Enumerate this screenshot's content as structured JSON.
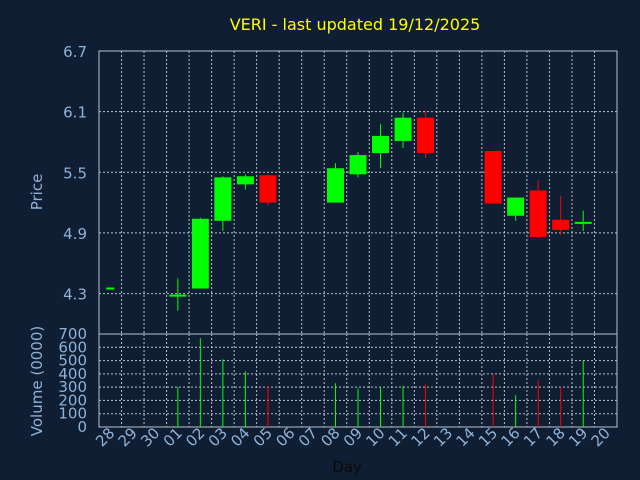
{
  "colors": {
    "background": "#0f1e32",
    "grid": "#b8c2cc",
    "title": "#ffff00",
    "axis_text": "#8fb2d8",
    "up": "#00ff00",
    "down": "#ff0000"
  },
  "chart_data": {
    "type": "candlestick",
    "title": "VERI - last updated 19/12/2025",
    "xlabel": "Day",
    "ylabel": "Price",
    "volume_label": "Volume (0000)",
    "grid": true,
    "categories": [
      "28",
      "29",
      "30",
      "01",
      "02",
      "03",
      "04",
      "05",
      "06",
      "07",
      "08",
      "09",
      "10",
      "11",
      "12",
      "13",
      "14",
      "15",
      "16",
      "17",
      "18",
      "19",
      "20"
    ],
    "price_ylim": [
      3.9,
      6.7
    ],
    "price_ticks": [
      "4.3",
      "4.9",
      "5.5",
      "6.1",
      "6.7"
    ],
    "volume_ylim": [
      0,
      700
    ],
    "volume_ticks": [
      "0",
      "100",
      "200",
      "300",
      "400",
      "500",
      "600",
      "700"
    ],
    "candles": [
      {
        "day": "28",
        "open": 4.35,
        "high": 4.35,
        "low": 4.35,
        "close": 4.35,
        "volume": 0
      },
      {
        "day": "01",
        "open": 4.28,
        "high": 4.45,
        "low": 4.13,
        "close": 4.28,
        "volume": 300
      },
      {
        "day": "02",
        "open": 4.35,
        "high": 5.05,
        "low": 4.35,
        "close": 5.04,
        "volume": 670
      },
      {
        "day": "03",
        "open": 5.02,
        "high": 5.46,
        "low": 4.92,
        "close": 5.45,
        "volume": 510
      },
      {
        "day": "04",
        "open": 5.38,
        "high": 5.48,
        "low": 5.33,
        "close": 5.46,
        "volume": 420
      },
      {
        "day": "05",
        "open": 5.47,
        "high": 5.48,
        "low": 5.17,
        "close": 5.2,
        "volume": 310
      },
      {
        "day": "08",
        "open": 5.2,
        "high": 5.59,
        "low": 5.2,
        "close": 5.54,
        "volume": 330
      },
      {
        "day": "09",
        "open": 5.48,
        "high": 5.7,
        "low": 5.45,
        "close": 5.67,
        "volume": 290
      },
      {
        "day": "10",
        "open": 5.69,
        "high": 5.98,
        "low": 5.54,
        "close": 5.86,
        "volume": 300
      },
      {
        "day": "11",
        "open": 5.81,
        "high": 6.09,
        "low": 5.74,
        "close": 6.04,
        "volume": 310
      },
      {
        "day": "12",
        "open": 6.04,
        "high": 6.11,
        "low": 5.64,
        "close": 5.69,
        "volume": 320
      },
      {
        "day": "15",
        "open": 5.71,
        "high": 5.71,
        "low": 5.19,
        "close": 5.19,
        "volume": 400
      },
      {
        "day": "16",
        "open": 5.07,
        "high": 5.25,
        "low": 5.02,
        "close": 5.25,
        "volume": 240
      },
      {
        "day": "17",
        "open": 5.32,
        "high": 5.42,
        "low": 4.85,
        "close": 4.86,
        "volume": 350
      },
      {
        "day": "18",
        "open": 5.03,
        "high": 5.27,
        "low": 4.88,
        "close": 4.93,
        "volume": 300
      },
      {
        "day": "19",
        "open": 5.0,
        "high": 5.12,
        "low": 4.92,
        "close": 5.0,
        "volume": 500
      }
    ]
  }
}
